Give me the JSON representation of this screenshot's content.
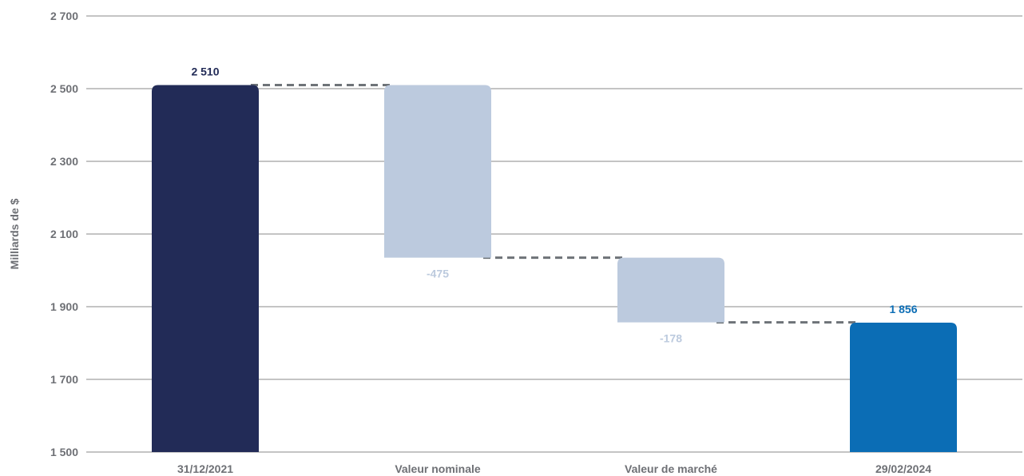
{
  "chart_data": {
    "type": "bar",
    "subtype": "waterfall",
    "title": "",
    "xlabel": "",
    "ylabel": "Milliards de $",
    "ylim": [
      1500,
      2700
    ],
    "yticks": [
      1500,
      1700,
      1900,
      2100,
      2300,
      2500,
      2700
    ],
    "ytick_labels": [
      "1 500",
      "1 700",
      "1 900",
      "2 100",
      "2 300",
      "2 500",
      "2 700"
    ],
    "grid": true,
    "categories": [
      "31/12/2021",
      "Valeur nominale",
      "Valeur de marché",
      "29/02/2024"
    ],
    "steps": [
      {
        "category": "31/12/2021",
        "kind": "total",
        "value": 2510,
        "label": "2 510",
        "color": "#222b57",
        "label_color": "#222b57"
      },
      {
        "category": "Valeur nominale",
        "kind": "delta",
        "value": -475,
        "label": "-475",
        "color": "#bccade",
        "label_color": "#bccade"
      },
      {
        "category": "Valeur de marché",
        "kind": "delta",
        "value": -178,
        "label": "-178",
        "color": "#bccade",
        "label_color": "#bccade"
      },
      {
        "category": "29/02/2024",
        "kind": "total",
        "value": 1856,
        "label": "1 856",
        "color": "#0b6db5",
        "label_color": "#0b6db5"
      }
    ],
    "connector_color": "#6e7378",
    "grid_color": "#8a8a8a"
  }
}
